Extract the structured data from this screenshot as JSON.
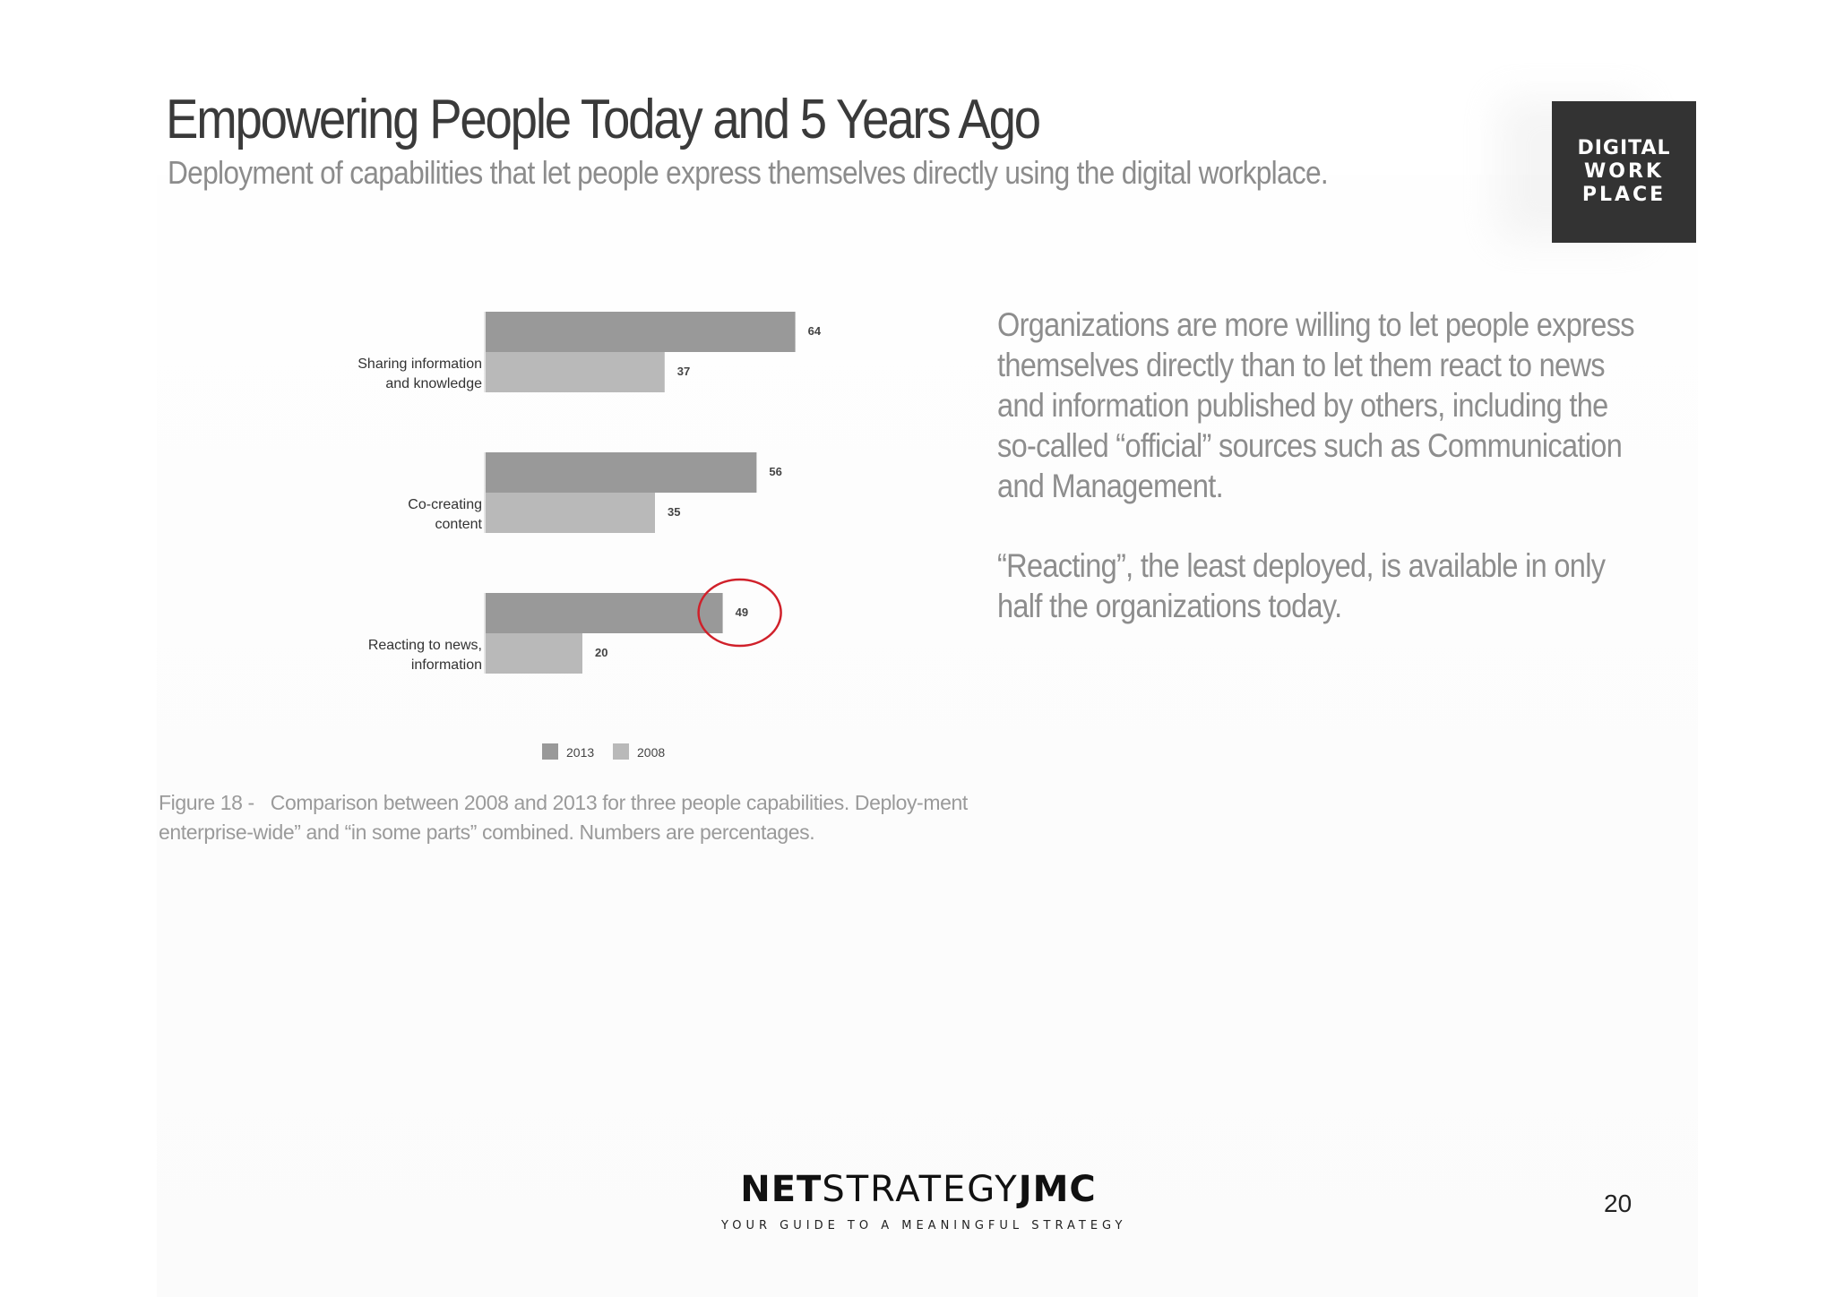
{
  "slide": {
    "title": "Empowering People Today and 5 Years Ago",
    "subtitle": "Deployment of capabilities that let people express themselves directly using the digital workplace.",
    "logo": {
      "line1": "DIGITAL",
      "line2": "WORK",
      "line3": "PLACE"
    },
    "caption": "Figure 18 -   Comparison between 2008 and 2013 for three people capabilities. Deploy-ment enterprise-wide” and “in some parts” combined.  Numbers are percentages.",
    "side_text": {
      "paragraph1": "Organizations are more willing to let people express themselves directly than to let them react  to news and information published by others, including the so-called “official” sources such as Communication and Management.",
      "paragraph2": "“Reacting”, the least deployed, is available in only half the organizations today."
    },
    "brand": {
      "name_bold1": "NET",
      "name_light": "STRATEGY",
      "name_bold2": "JMC",
      "tagline": "YOUR GUIDE TO A MEANINGFUL STRATEGY"
    },
    "page_number": "20"
  },
  "chart_data": {
    "type": "bar",
    "orientation": "horizontal",
    "categories": [
      [
        "Sharing information",
        "and knowledge"
      ],
      [
        "Co-creating",
        "content"
      ],
      [
        "Reacting to news,",
        "information"
      ]
    ],
    "series": [
      {
        "name": "2013",
        "values": [
          64,
          56,
          49
        ],
        "color": "#999999"
      },
      {
        "name": "2008",
        "values": [
          37,
          35,
          20
        ],
        "color": "#b9b9b9"
      }
    ],
    "xlim": [
      0,
      100
    ],
    "highlight": {
      "category_index": 2,
      "series_index": 0,
      "color": "#d0202a"
    },
    "legend_position": "bottom-center",
    "title": "",
    "xlabel": "",
    "ylabel": ""
  }
}
